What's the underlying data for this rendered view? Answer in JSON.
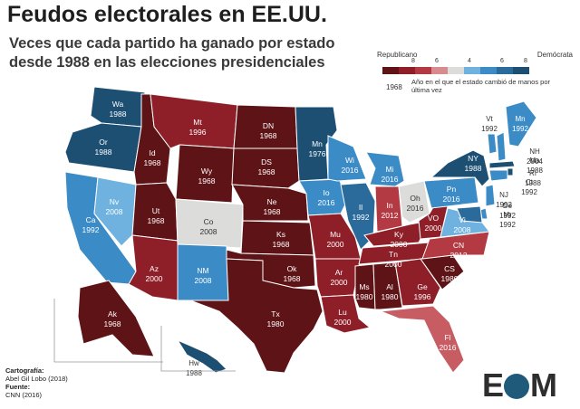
{
  "title": "Feudos electorales en EE.UU.",
  "subtitle_line1": "Veces que cada partido ha ganado por estado",
  "subtitle_line2": "desde 1988 en las elecciones presidenciales",
  "legend": {
    "republican_label": "Republicano",
    "democrat_label": "Demócrata",
    "ticks": [
      "8",
      "6",
      "4",
      "6",
      "8"
    ],
    "year_label": "1968",
    "note": "Año en el que el estado cambió de manos por última vez",
    "colors": [
      "#5e1316",
      "#8e1f28",
      "#b33a43",
      "#d88b8f",
      "#dcdcda",
      "#6fb2e0",
      "#3b8bc6",
      "#2a6b9c",
      "#1d4f73"
    ]
  },
  "credits": {
    "map_label": "Cartografía:",
    "map_value": "Abel Gil Lobo (2018)",
    "source_label": "Fuente:",
    "source_value": "CNN (2016)"
  },
  "logo_text_left": "E",
  "logo_text_right": "M",
  "states": [
    {
      "abbr": "Wa",
      "year": "1988",
      "color": "#1d4f73",
      "text": "#ffffff"
    },
    {
      "abbr": "Or",
      "year": "1988",
      "color": "#1d4f73",
      "text": "#ffffff"
    },
    {
      "abbr": "Ca",
      "year": "1992",
      "color": "#3b8bc6",
      "text": "#ffffff"
    },
    {
      "abbr": "Nv",
      "year": "2008",
      "color": "#6fb2e0",
      "text": "#ffffff"
    },
    {
      "abbr": "Id",
      "year": "1968",
      "color": "#5e1316",
      "text": "#ffffff"
    },
    {
      "abbr": "Mt",
      "year": "1996",
      "color": "#8e1f28",
      "text": "#ffffff"
    },
    {
      "abbr": "Wy",
      "year": "1968",
      "color": "#5e1316",
      "text": "#ffffff"
    },
    {
      "abbr": "Ut",
      "year": "1968",
      "color": "#5e1316",
      "text": "#ffffff"
    },
    {
      "abbr": "Az",
      "year": "2000",
      "color": "#8e1f28",
      "text": "#ffffff"
    },
    {
      "abbr": "Co",
      "year": "2008",
      "color": "#dcdcda",
      "text": "#333333"
    },
    {
      "abbr": "NM",
      "year": "2008",
      "color": "#3b8bc6",
      "text": "#ffffff"
    },
    {
      "abbr": "DN",
      "year": "1968",
      "color": "#5e1316",
      "text": "#ffffff"
    },
    {
      "abbr": "DS",
      "year": "1968",
      "color": "#5e1316",
      "text": "#ffffff"
    },
    {
      "abbr": "Ne",
      "year": "1968",
      "color": "#5e1316",
      "text": "#ffffff"
    },
    {
      "abbr": "Ks",
      "year": "1968",
      "color": "#5e1316",
      "text": "#ffffff"
    },
    {
      "abbr": "Ok",
      "year": "1968",
      "color": "#5e1316",
      "text": "#ffffff"
    },
    {
      "abbr": "Tx",
      "year": "1980",
      "color": "#5e1316",
      "text": "#ffffff"
    },
    {
      "abbr": "Mn",
      "year": "1976",
      "color": "#1d4f73",
      "text": "#ffffff"
    },
    {
      "abbr": "Io",
      "year": "2016",
      "color": "#3b8bc6",
      "text": "#ffffff"
    },
    {
      "abbr": "Mu",
      "year": "2000",
      "color": "#8e1f28",
      "text": "#ffffff"
    },
    {
      "abbr": "Ar",
      "year": "2000",
      "color": "#8e1f28",
      "text": "#ffffff"
    },
    {
      "abbr": "Lu",
      "year": "2000",
      "color": "#8e1f28",
      "text": "#ffffff"
    },
    {
      "abbr": "Wi",
      "year": "2016",
      "color": "#3b8bc6",
      "text": "#ffffff"
    },
    {
      "abbr": "Il",
      "year": "1992",
      "color": "#2a6b9c",
      "text": "#ffffff"
    },
    {
      "abbr": "Mi",
      "year": "2016",
      "color": "#3b8bc6",
      "text": "#ffffff"
    },
    {
      "abbr": "In",
      "year": "2012",
      "color": "#b33a43",
      "text": "#ffffff"
    },
    {
      "abbr": "Oh",
      "year": "2016",
      "color": "#dcdcda",
      "text": "#333333"
    },
    {
      "abbr": "Ky",
      "year": "2000",
      "color": "#8e1f28",
      "text": "#ffffff"
    },
    {
      "abbr": "Tn",
      "year": "2000",
      "color": "#8e1f28",
      "text": "#ffffff"
    },
    {
      "abbr": "Ms",
      "year": "1980",
      "color": "#5e1316",
      "text": "#ffffff"
    },
    {
      "abbr": "Al",
      "year": "1980",
      "color": "#5e1316",
      "text": "#ffffff"
    },
    {
      "abbr": "Ge",
      "year": "1996",
      "color": "#8e1f28",
      "text": "#ffffff"
    },
    {
      "abbr": "Fl",
      "year": "2016",
      "color": "#c75c63",
      "text": "#ffffff"
    },
    {
      "abbr": "CS",
      "year": "1980",
      "color": "#5e1316",
      "text": "#ffffff"
    },
    {
      "abbr": "CN",
      "year": "2012",
      "color": "#b33a43",
      "text": "#ffffff"
    },
    {
      "abbr": "VO",
      "year": "2000",
      "color": "#8e1f28",
      "text": "#ffffff"
    },
    {
      "abbr": "Vi",
      "year": "2008",
      "color": "#6fb2e0",
      "text": "#ffffff"
    },
    {
      "abbr": "Pn",
      "year": "2016",
      "color": "#3b8bc6",
      "text": "#ffffff"
    },
    {
      "abbr": "NY",
      "year": "1988",
      "color": "#1d4f73",
      "text": "#ffffff"
    },
    {
      "abbr": "Vt",
      "year": "1992",
      "color": "#3b8bc6",
      "text": "#333333"
    },
    {
      "abbr": "Mn",
      "year": "1992",
      "color": "#3b8bc6",
      "text": "#ffffff",
      "key": "Me"
    },
    {
      "abbr": "NH",
      "year": "2004",
      "color": "#3b8bc6",
      "text": "#333333"
    },
    {
      "abbr": "Ma",
      "year": "1988",
      "color": "#1d4f73",
      "text": "#333333"
    },
    {
      "abbr": "RI",
      "year": "1988",
      "color": "#1d4f73",
      "text": "#333333"
    },
    {
      "abbr": "Ct",
      "year": "1992",
      "color": "#3b8bc6",
      "text": "#333333"
    },
    {
      "abbr": "NJ",
      "year": "1992",
      "color": "#3b8bc6",
      "text": "#333333"
    },
    {
      "abbr": "De",
      "year": "1992",
      "color": "#3b8bc6",
      "text": "#333333"
    },
    {
      "abbr": "Mr",
      "year": "1992",
      "color": "#2a6b9c",
      "text": "#333333"
    },
    {
      "abbr": "Ak",
      "year": "1968",
      "color": "#5e1316",
      "text": "#ffffff"
    },
    {
      "abbr": "Hw",
      "year": "1988",
      "color": "#1d4f73",
      "text": "#333333"
    }
  ]
}
